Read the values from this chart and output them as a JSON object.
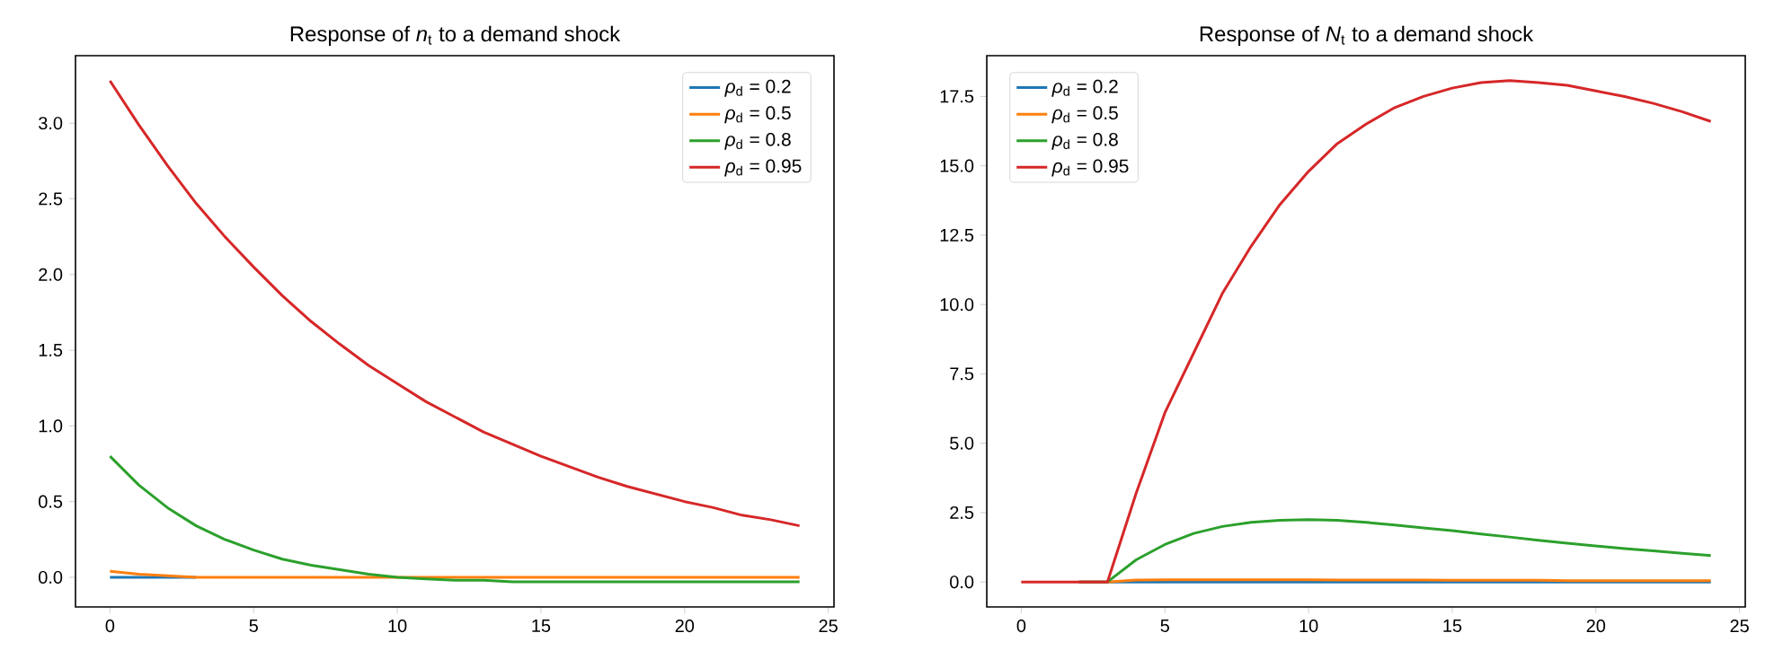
{
  "chart_data": [
    {
      "type": "line",
      "title": "Response of *n*$_{t}$ to a demand shock",
      "x": [
        0,
        1,
        2,
        3,
        4,
        5,
        6,
        7,
        8,
        9,
        10,
        11,
        12,
        13,
        14,
        15,
        16,
        17,
        18,
        19,
        20,
        21,
        22,
        23,
        24
      ],
      "xlim": [
        -1.2,
        25.2
      ],
      "ylim": [
        -0.196,
        3.446
      ],
      "xticks": [
        0,
        5,
        10,
        15,
        20,
        25
      ],
      "yticks": [
        {
          "value": 0,
          "label": "0.0"
        },
        {
          "value": 0.5,
          "label": "0.5"
        },
        {
          "value": 1,
          "label": "1.0"
        },
        {
          "value": 1.5,
          "label": "1.5"
        },
        {
          "value": 2,
          "label": "2.0"
        },
        {
          "value": 2.5,
          "label": "2.5"
        },
        {
          "value": 3,
          "label": "3.0"
        }
      ],
      "legend": "top right",
      "series": [
        {
          "name": "*ρ*$_{d}$ = 0.2",
          "color": "#1f77b4",
          "values": [
            0,
            0,
            0,
            0,
            null,
            null,
            null,
            null,
            null,
            null,
            null,
            null,
            null,
            null,
            null,
            null,
            null,
            null,
            null,
            null,
            null,
            null,
            null,
            null,
            null
          ]
        },
        {
          "name": "*ρ*$_{d}$ = 0.5",
          "color": "#ff7f0e",
          "values": [
            0.04,
            0.02,
            0.01,
            0,
            0,
            0,
            0,
            0,
            0,
            0,
            0,
            0,
            0,
            0,
            0,
            0,
            0,
            0,
            0,
            0,
            0,
            0,
            0,
            0,
            0
          ]
        },
        {
          "name": "*ρ*$_{d}$ = 0.8",
          "color": "#2ca02c",
          "values": [
            0.8,
            0.61,
            0.46,
            0.34,
            0.25,
            0.18,
            0.12,
            0.08,
            0.05,
            0.02,
            0,
            -0.01,
            -0.02,
            -0.02,
            -0.03,
            -0.03,
            -0.03,
            -0.03,
            -0.03,
            -0.03,
            -0.03,
            -0.03,
            -0.03,
            -0.03,
            -0.03
          ]
        },
        {
          "name": "*ρ*$_{d}$ = 0.95",
          "color": "#d62728",
          "values": [
            3.28,
            2.99,
            2.72,
            2.47,
            2.25,
            2.05,
            1.86,
            1.69,
            1.54,
            1.4,
            1.28,
            1.16,
            1.06,
            0.96,
            0.88,
            0.8,
            0.73,
            0.66,
            0.6,
            0.55,
            0.5,
            0.46,
            0.41,
            0.38,
            0.34
          ]
        }
      ]
    },
    {
      "type": "line",
      "title": "Response of *N*$_{t}$ to a demand shock",
      "x": [
        0,
        1,
        2,
        3,
        4,
        5,
        6,
        7,
        8,
        9,
        10,
        11,
        12,
        13,
        14,
        15,
        16,
        17,
        18,
        19,
        20,
        21,
        22,
        23,
        24
      ],
      "xlim": [
        -1.2,
        25.2
      ],
      "ylim": [
        -0.9,
        18.97
      ],
      "xticks": [
        0,
        5,
        10,
        15,
        20,
        25
      ],
      "yticks": [
        {
          "value": 0,
          "label": "0.0"
        },
        {
          "value": 2.5,
          "label": "2.5"
        },
        {
          "value": 5,
          "label": "5.0"
        },
        {
          "value": 7.5,
          "label": "7.5"
        },
        {
          "value": 10,
          "label": "10.0"
        },
        {
          "value": 12.5,
          "label": "12.5"
        },
        {
          "value": 15,
          "label": "15.0"
        },
        {
          "value": 17.5,
          "label": "17.5"
        }
      ],
      "legend": "top left",
      "series": [
        {
          "name": "*ρ*$_{d}$ = 0.2",
          "color": "#1f77b4",
          "values": [
            null,
            null,
            0,
            0,
            0,
            0,
            0,
            0,
            0,
            0,
            0,
            0,
            0,
            0,
            0,
            0,
            0,
            0,
            0,
            0,
            0,
            0,
            0,
            0,
            0
          ]
        },
        {
          "name": "*ρ*$_{d}$ = 0.5",
          "color": "#ff7f0e",
          "values": [
            null,
            null,
            0,
            0,
            0.07,
            0.08,
            0.08,
            0.08,
            0.08,
            0.08,
            0.08,
            0.07,
            0.07,
            0.07,
            0.07,
            0.06,
            0.06,
            0.06,
            0.06,
            0.05,
            0.05,
            0.05,
            0.05,
            0.05,
            0.05
          ]
        },
        {
          "name": "*ρ*$_{d}$ = 0.8",
          "color": "#2ca02c",
          "values": [
            null,
            null,
            0,
            0,
            0.8,
            1.35,
            1.75,
            2.0,
            2.15,
            2.22,
            2.25,
            2.22,
            2.15,
            2.05,
            1.95,
            1.85,
            1.73,
            1.62,
            1.5,
            1.4,
            1.3,
            1.2,
            1.12,
            1.03,
            0.95
          ]
        },
        {
          "name": "*ρ*$_{d}$ = 0.95",
          "color": "#d62728",
          "values": [
            0,
            0,
            0,
            0,
            3.2,
            6.1,
            8.25,
            10.4,
            12.1,
            13.6,
            14.8,
            15.8,
            16.5,
            17.1,
            17.5,
            17.8,
            18.0,
            18.07,
            18.0,
            17.9,
            17.7,
            17.5,
            17.25,
            16.95,
            16.6
          ]
        }
      ]
    }
  ]
}
